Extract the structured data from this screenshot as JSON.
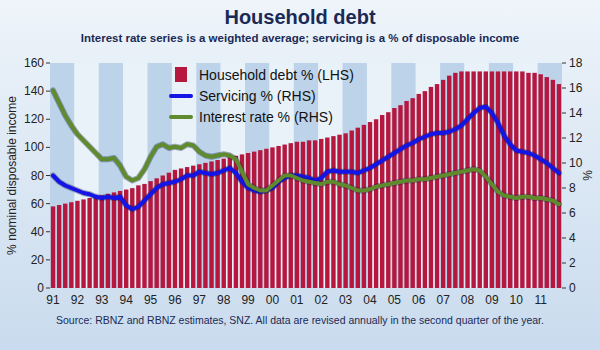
{
  "chart_data": {
    "type": "bar",
    "title": "Household debt",
    "subtitle": "Interest rate series is a weighted average; servicing is a % of disposable income",
    "y_label": "% nominal disposable income",
    "y2_label": "%",
    "source": "Source: RBNZ and RBNZ estimates, SNZ. All data are revised annually in the second quarter of the year.",
    "legend": "top-left",
    "categories": [
      "91",
      null,
      null,
      null,
      "92",
      null,
      null,
      null,
      "93",
      null,
      null,
      null,
      "94",
      null,
      null,
      null,
      "95",
      null,
      null,
      null,
      "96",
      null,
      null,
      null,
      "97",
      null,
      null,
      null,
      "98",
      null,
      null,
      null,
      "99",
      null,
      null,
      null,
      "00",
      null,
      null,
      null,
      "01",
      null,
      null,
      null,
      "02",
      null,
      null,
      null,
      "03",
      null,
      null,
      null,
      "04",
      null,
      null,
      null,
      "05",
      null,
      null,
      null,
      "06",
      null,
      null,
      null,
      "07",
      null,
      null,
      null,
      "08",
      null,
      null,
      null,
      "09",
      null,
      null,
      null,
      "10",
      null,
      null,
      null,
      "11",
      null,
      null,
      null
    ],
    "series": [
      {
        "name": "Household debt % (LHS)",
        "type": "bar",
        "color": "#b5173f",
        "values": [
          58,
          59,
          60,
          61,
          62,
          63,
          64,
          65,
          66,
          67,
          68,
          69,
          70,
          71,
          73,
          74,
          76,
          78,
          80,
          82,
          84,
          85,
          86,
          87,
          88,
          89,
          90,
          91,
          92,
          93,
          94,
          95,
          96,
          97,
          98,
          99,
          100,
          101,
          102,
          103,
          104,
          104,
          105,
          105,
          106,
          107,
          108,
          109,
          110,
          112,
          114,
          116,
          118,
          120,
          123,
          125,
          128,
          130,
          133,
          135,
          138,
          140,
          143,
          145,
          148,
          151,
          153,
          154,
          154,
          154,
          154,
          154,
          154,
          154,
          154,
          154,
          154,
          154,
          153,
          153,
          152,
          150,
          148,
          145
        ]
      },
      {
        "name": "Servicing % (RHS)",
        "type": "line",
        "color": "#1414e6",
        "axis": "y2",
        "values": [
          9.0,
          8.5,
          8.2,
          8.0,
          7.8,
          7.6,
          7.5,
          7.3,
          7.2,
          7.3,
          7.2,
          7.3,
          6.6,
          6.3,
          6.5,
          7.0,
          7.5,
          8.0,
          8.3,
          8.4,
          8.5,
          8.7,
          9.0,
          9.0,
          9.3,
          9.2,
          9.1,
          9.2,
          9.4,
          9.6,
          9.2,
          8.5,
          8.0,
          7.8,
          7.7,
          7.8,
          8.0,
          8.5,
          8.8,
          9.0,
          9.0,
          8.9,
          8.8,
          8.6,
          8.8,
          9.3,
          9.4,
          9.3,
          9.3,
          9.3,
          9.2,
          9.4,
          9.6,
          9.9,
          10.2,
          10.5,
          10.8,
          11.1,
          11.4,
          11.6,
          11.9,
          12.1,
          12.3,
          12.4,
          12.4,
          12.5,
          12.7,
          13.0,
          13.5,
          14.0,
          14.4,
          14.5,
          14.0,
          13.2,
          12.2,
          11.5,
          11.0,
          10.9,
          10.8,
          10.6,
          10.3,
          10.0,
          9.6,
          9.2
        ]
      },
      {
        "name": "Interest rate % (RHS)",
        "type": "line",
        "color": "#5f8a2e",
        "axis": "y2",
        "values": [
          15.8,
          14.8,
          13.8,
          13.0,
          12.3,
          11.8,
          11.3,
          10.8,
          10.3,
          10.3,
          10.4,
          9.8,
          8.9,
          8.6,
          8.8,
          9.5,
          10.5,
          11.3,
          11.5,
          11.2,
          11.3,
          11.2,
          11.5,
          11.4,
          10.9,
          10.6,
          10.5,
          10.6,
          10.7,
          10.6,
          10.3,
          9.3,
          8.3,
          8.0,
          7.8,
          7.8,
          8.2,
          8.6,
          9.0,
          9.0,
          8.8,
          8.6,
          8.5,
          8.4,
          8.3,
          8.5,
          8.5,
          8.3,
          8.2,
          8.0,
          7.8,
          7.8,
          7.9,
          8.1,
          8.2,
          8.3,
          8.4,
          8.5,
          8.6,
          8.6,
          8.7,
          8.7,
          8.8,
          8.9,
          9.0,
          9.1,
          9.2,
          9.3,
          9.4,
          9.5,
          9.4,
          8.9,
          8.3,
          7.7,
          7.4,
          7.3,
          7.2,
          7.3,
          7.3,
          7.2,
          7.2,
          7.1,
          7.0,
          6.7
        ]
      }
    ],
    "ylim": [
      0,
      160
    ],
    "yticks": [
      0,
      20,
      40,
      60,
      80,
      100,
      120,
      140,
      160
    ],
    "y2lim": [
      0,
      18
    ],
    "y2ticks": [
      0,
      2,
      4,
      6,
      8,
      10,
      12,
      14,
      16,
      18
    ]
  }
}
